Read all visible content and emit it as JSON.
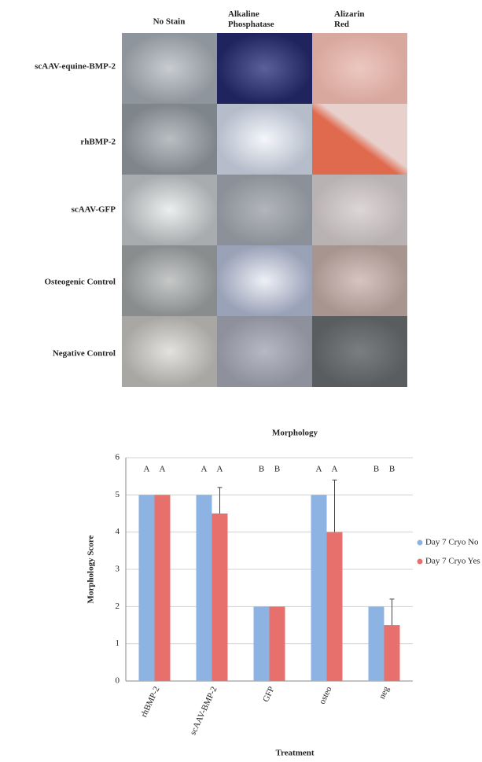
{
  "figure": {
    "columns": [
      "No Stain",
      "Alkaline Phosphatase",
      "Alizarin Red"
    ],
    "rows": [
      "scAAV-equine-BMP-2",
      "rhBMP-2",
      "scAAV-GFP",
      "Osteogenic Control",
      "Negative Control"
    ]
  },
  "chart_data": {
    "type": "bar",
    "title": "Morphology",
    "x_label": "Treatment",
    "y_label": "Morphology Score",
    "categories": [
      "rhBMP-2",
      "scAAV-BMP-2",
      "GFP",
      "osteo",
      "neg"
    ],
    "series": [
      {
        "name": "Day 7 Cryo No",
        "color": "#8db3e2",
        "values": [
          5,
          5,
          2,
          5,
          2
        ],
        "errors": [
          0,
          0,
          0,
          0,
          0
        ],
        "letters": [
          "A",
          "A",
          "B",
          "A",
          "B"
        ]
      },
      {
        "name": "Day 7 Cryo Yes",
        "color": "#e8706c",
        "values": [
          5,
          4.5,
          2,
          4,
          1.5
        ],
        "errors": [
          0,
          0.7,
          0,
          1.4,
          0.7
        ],
        "letters": [
          "A",
          "A",
          "B",
          "A",
          "B"
        ]
      }
    ],
    "ylim": [
      0,
      6
    ],
    "yticks": [
      0,
      1,
      2,
      3,
      4,
      5,
      6
    ],
    "grid": true,
    "legend": "right"
  }
}
